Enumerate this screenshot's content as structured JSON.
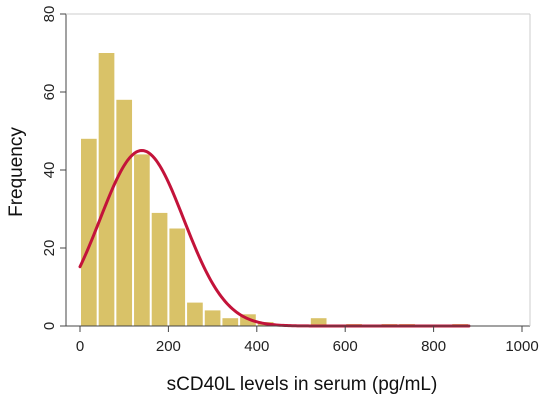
{
  "chart_data": {
    "type": "bar",
    "title": "",
    "xlabel": "sCD40L levels in serum (pg/mL)",
    "ylabel": "Frequency",
    "xlim": [
      0,
      1000
    ],
    "ylim": [
      0,
      80
    ],
    "xticks": [
      "0",
      "200",
      "400",
      "600",
      "800",
      "1000"
    ],
    "yticks": [
      "0",
      "20",
      "40",
      "60",
      "80"
    ],
    "grid": false,
    "bin_width": 40,
    "bins": [
      {
        "x0": 0,
        "x1": 40,
        "value": 48
      },
      {
        "x0": 40,
        "x1": 80,
        "value": 70
      },
      {
        "x0": 80,
        "x1": 120,
        "value": 58
      },
      {
        "x0": 120,
        "x1": 160,
        "value": 44
      },
      {
        "x0": 160,
        "x1": 200,
        "value": 29
      },
      {
        "x0": 200,
        "x1": 240,
        "value": 25
      },
      {
        "x0": 240,
        "x1": 280,
        "value": 6
      },
      {
        "x0": 280,
        "x1": 320,
        "value": 4
      },
      {
        "x0": 320,
        "x1": 360,
        "value": 2
      },
      {
        "x0": 360,
        "x1": 400,
        "value": 3
      },
      {
        "x0": 400,
        "x1": 440,
        "value": 1
      },
      {
        "x0": 520,
        "x1": 560,
        "value": 2
      },
      {
        "x0": 600,
        "x1": 640,
        "value": 0.5
      },
      {
        "x0": 680,
        "x1": 720,
        "value": 0.5
      },
      {
        "x0": 720,
        "x1": 760,
        "value": 0.5
      },
      {
        "x0": 840,
        "x1": 880,
        "value": 0.5
      }
    ],
    "normal_curve": {
      "mean": 140,
      "sd": 95,
      "peak": 45,
      "x_start": 0,
      "x_end": 880
    },
    "colors": {
      "bar": "#d9c268",
      "curve": "#c3133a",
      "axis": "#444444"
    }
  }
}
